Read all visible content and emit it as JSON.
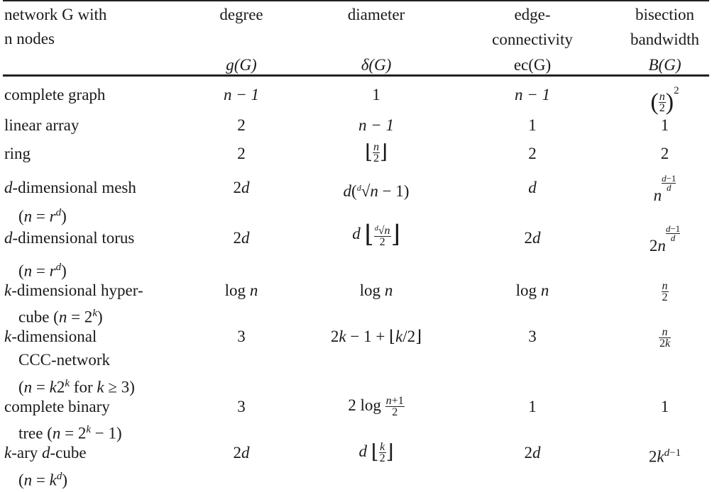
{
  "header": {
    "col1": [
      "network G with",
      "n nodes"
    ],
    "col2": [
      "degree",
      "g(G)"
    ],
    "col3": [
      "diameter",
      "δ(G)"
    ],
    "col4": [
      "edge-",
      "connectivity",
      "ec(G)"
    ],
    "col5": [
      "bisection",
      "bandwidth",
      "B(G)"
    ]
  },
  "rows": [
    {
      "name": [
        "complete graph"
      ],
      "degree": "n − 1",
      "diameter": "1",
      "ec": "n − 1",
      "bisection": "(n/2)²"
    },
    {
      "name": [
        "linear array"
      ],
      "degree": "2",
      "diameter": "n − 1",
      "ec": "1",
      "bisection": "1"
    },
    {
      "name": [
        "ring"
      ],
      "degree": "2",
      "diameter": "⌊n/2⌋",
      "ec": "2",
      "bisection": "2"
    },
    {
      "name": [
        "d-dimensional mesh",
        "(n = r^d)"
      ],
      "degree": "2d",
      "diameter": "d(ᵈ√n − 1)",
      "ec": "d",
      "bisection": "n^((d−1)/d)"
    },
    {
      "name": [
        "d-dimensional torus",
        "(n = r^d)"
      ],
      "degree": "2d",
      "diameter": "d⌊ᵈ√n/2⌋",
      "ec": "2d",
      "bisection": "2n^((d−1)/d)"
    },
    {
      "name": [
        "k-dimensional hyper-",
        "cube (n = 2^k)"
      ],
      "degree": "log n",
      "diameter": "log n",
      "ec": "log n",
      "bisection": "n/2"
    },
    {
      "name": [
        "k-dimensional",
        "CCC-network",
        "(n = k2^k for k ≥ 3)"
      ],
      "degree": "3",
      "diameter": "2k − 1 + ⌊k/2⌋",
      "ec": "3",
      "bisection": "n/2k"
    },
    {
      "name": [
        "complete binary",
        "tree (n = 2^k − 1)"
      ],
      "degree": "3",
      "diameter": "2 log (n+1)/2",
      "ec": "1",
      "bisection": "1"
    },
    {
      "name": [
        "k-ary d-cube",
        "(n = k^d)"
      ],
      "degree": "2d",
      "diameter": "d⌊k/2⌋",
      "ec": "2d",
      "bisection": "2k^(d−1)"
    }
  ]
}
